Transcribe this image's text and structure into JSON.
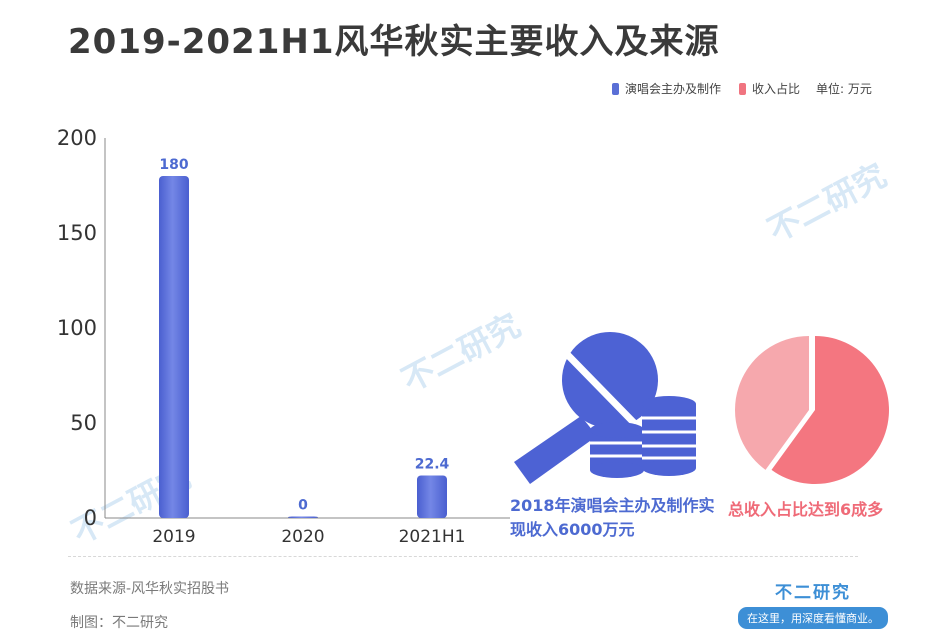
{
  "title": "2019-2021H1风华秋实主要收入及来源",
  "legend": {
    "series_a": "演唱会主办及制作",
    "series_b": "收入占比",
    "unit": "单位: 万元",
    "color_a": "#5a6fd6",
    "color_b": "#f07480"
  },
  "chart_data": [
    {
      "type": "bar",
      "categories": [
        "2019",
        "2020",
        "2021H1"
      ],
      "series": [
        {
          "name": "演唱会主办及制作",
          "values": [
            180,
            0,
            22.4
          ]
        }
      ],
      "value_labels": [
        "180",
        "0",
        "22.4"
      ],
      "yticks": [
        "0",
        "50",
        "100",
        "150",
        "200"
      ],
      "ytick_values": [
        0,
        50,
        100,
        150,
        200
      ],
      "ylim": [
        0,
        200
      ],
      "xlabel": "",
      "ylabel": "",
      "grid": false,
      "bar_color": "#5a6fd6"
    },
    {
      "type": "pie",
      "series": [
        {
          "name": "收入占比",
          "values": [
            60,
            40
          ]
        }
      ],
      "colors": [
        "#f47680",
        "#f6a8ad"
      ]
    }
  ],
  "annotations": {
    "bar_caption": "2018年演唱会主办及制作实现收入6000万元",
    "pie_caption": "总收入占比达到6成多"
  },
  "watermark": "不二研究",
  "footer": {
    "source": "数据来源-风华秋实招股书",
    "maker": "制图：不二研究",
    "brand": "不二研究",
    "brand_tag": "在这里，用深度看懂商业。"
  },
  "icons": [
    "magnifier-icon",
    "coin-stack-icon",
    "pie-chart-icon",
    "brand-logo-icon"
  ]
}
